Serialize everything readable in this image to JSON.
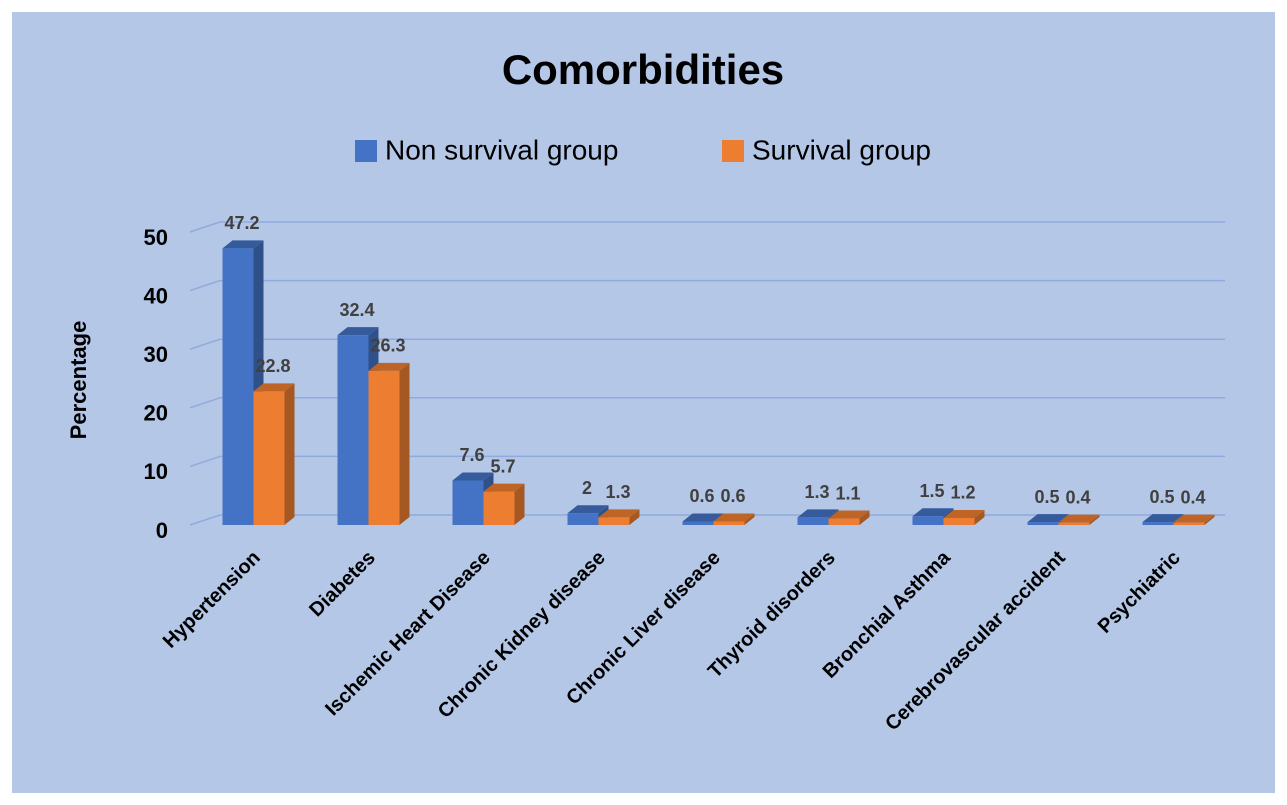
{
  "chart_data": {
    "type": "bar3d",
    "title": "Comorbidities",
    "y_label": "Percentage",
    "categories": [
      "Hypertension",
      "Diabetes",
      "Ischemic Heart Disease",
      "Chronic Kidney disease",
      "Chronic Liver disease",
      "Thyroid disorders",
      "Bronchial Asthma",
      "Cerebrovascular accident",
      "Psychiatric"
    ],
    "series": [
      {
        "name": "Non survival group",
        "color": "#4472c4",
        "values": [
          47.2,
          32.4,
          7.6,
          2,
          0.6,
          1.3,
          1.5,
          0.5,
          0.5
        ]
      },
      {
        "name": "Survival group",
        "color": "#ed7d31",
        "values": [
          22.8,
          26.3,
          5.7,
          1.3,
          0.6,
          1.1,
          1.2,
          0.4,
          0.4
        ]
      }
    ],
    "ylim": [
      0,
      50
    ],
    "yticks": [
      0,
      10,
      20,
      30,
      40,
      50
    ],
    "grid": true,
    "legend": "top"
  }
}
